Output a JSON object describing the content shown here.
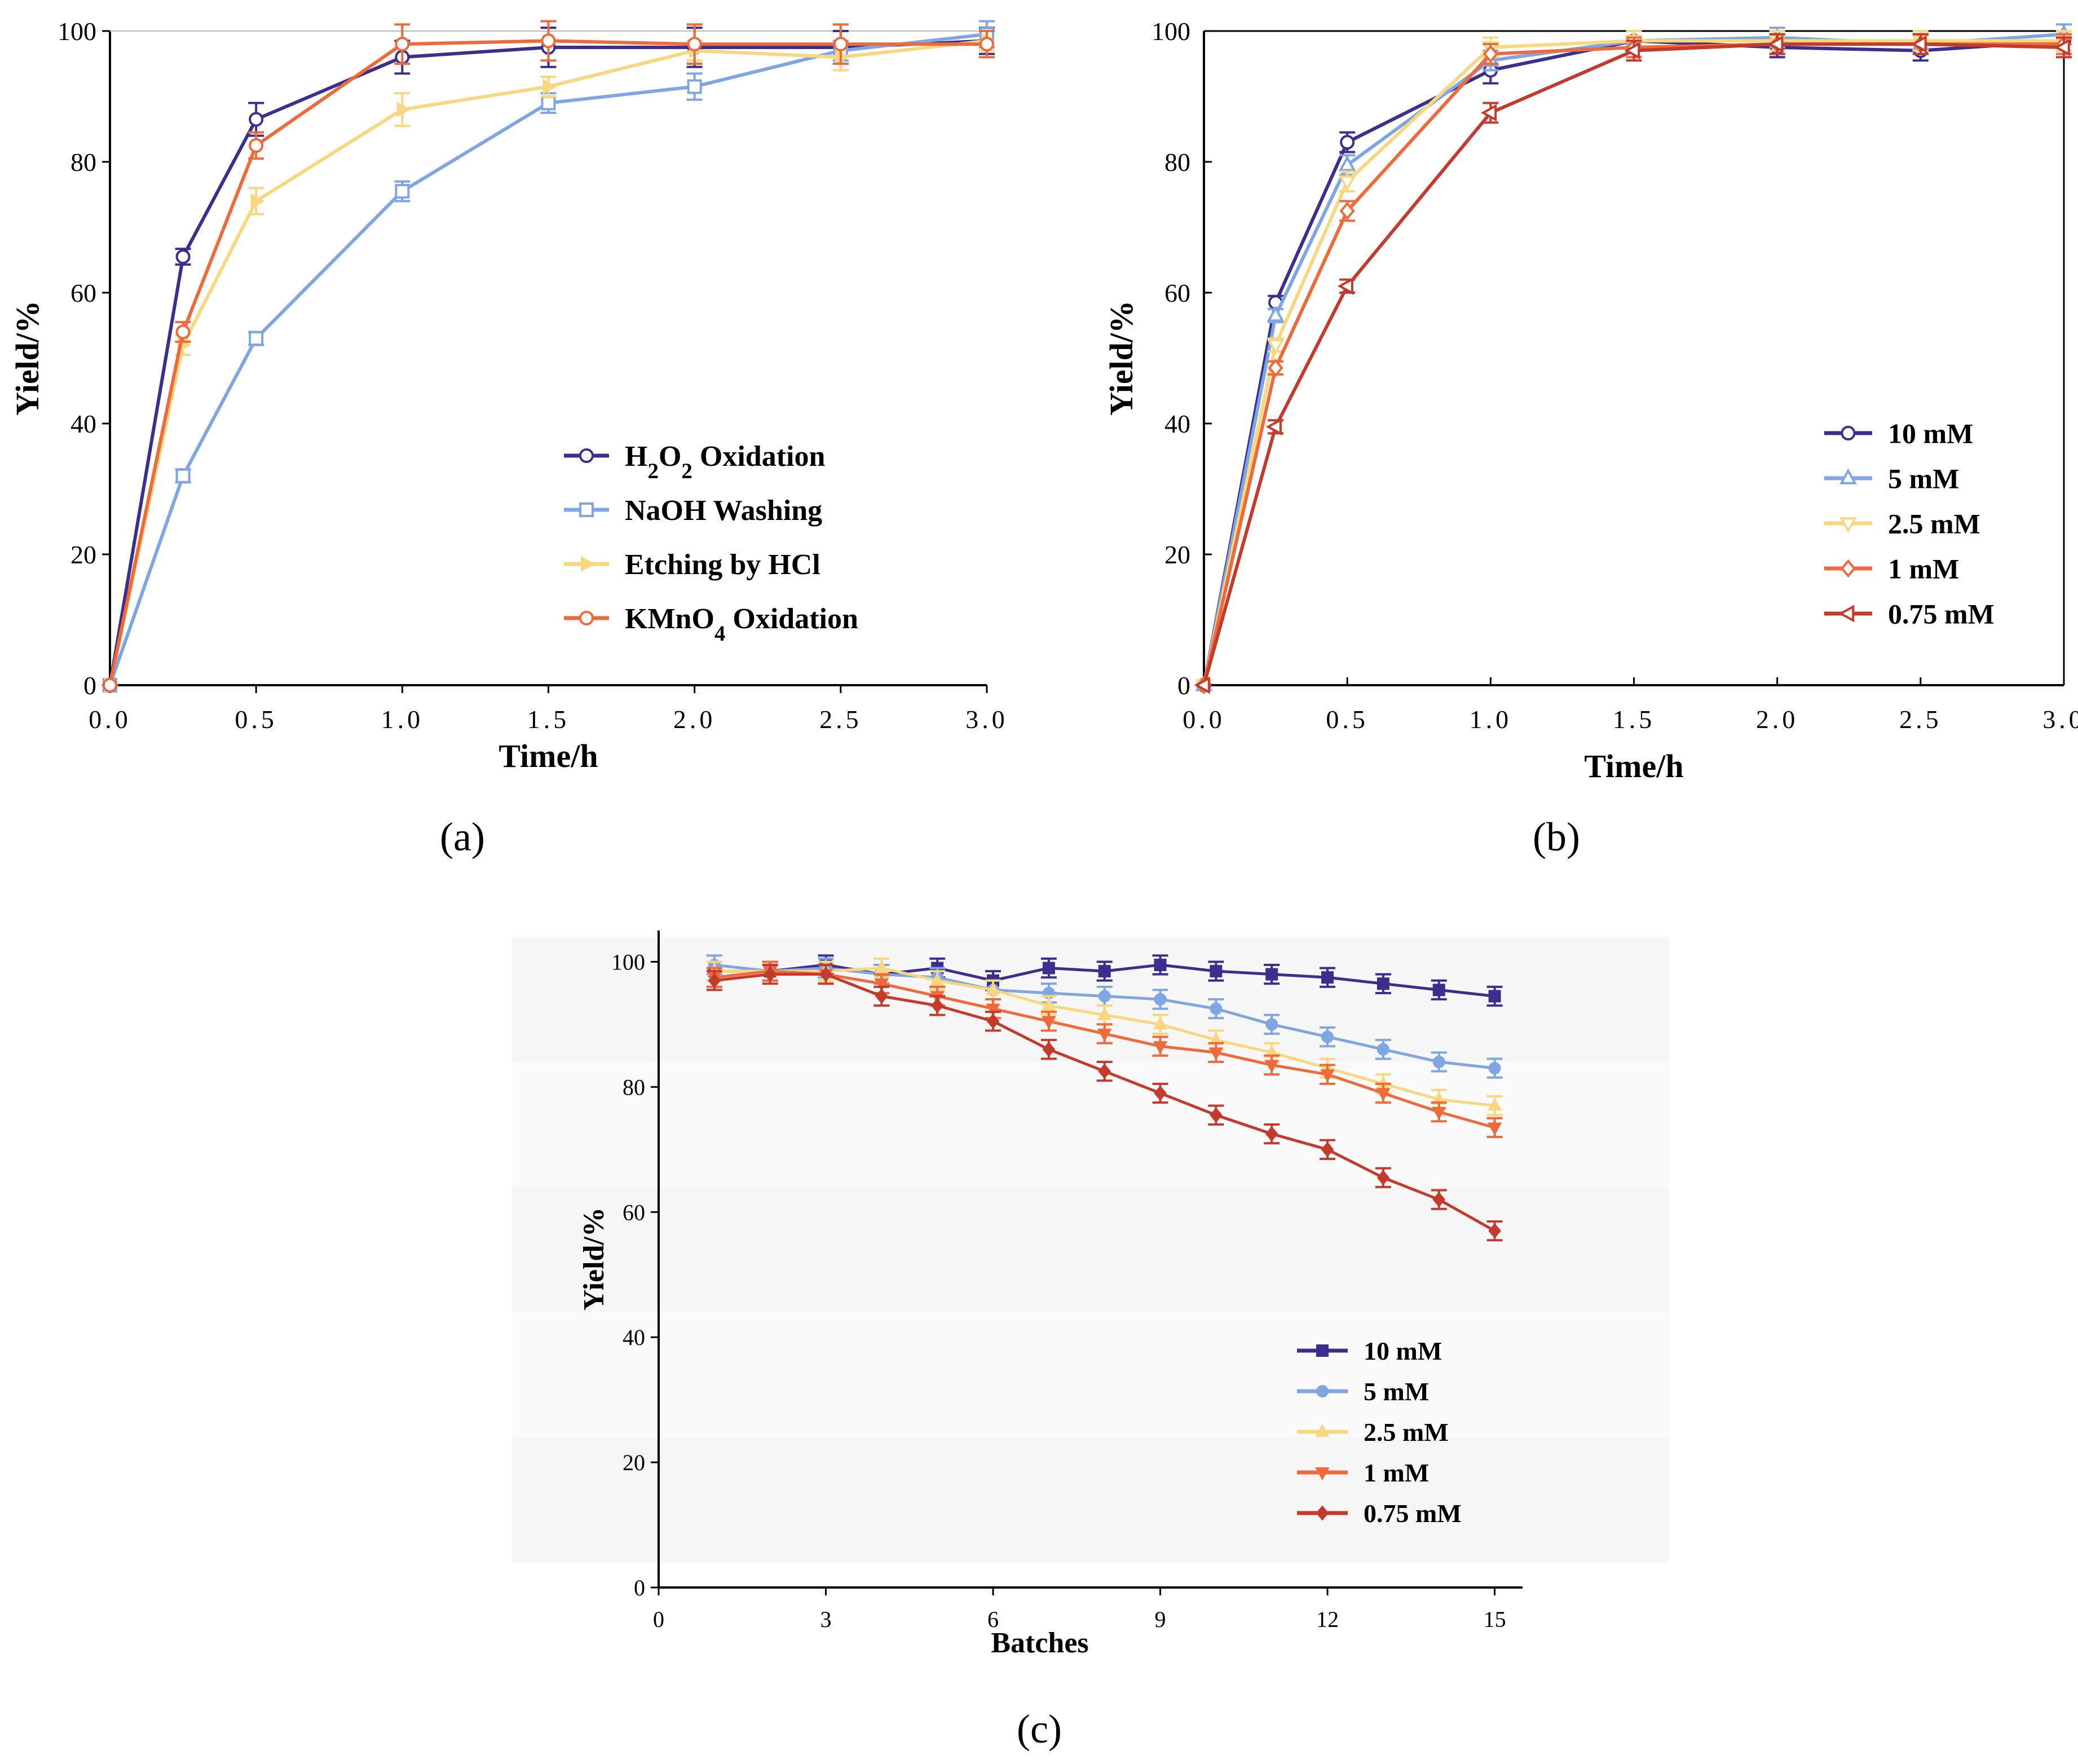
{
  "figure": {
    "panel_captions": [
      "(a)",
      "(b)",
      "(c)"
    ]
  },
  "chart_data": [
    {
      "panel": "(a)",
      "type": "line",
      "xlabel": "Time/h",
      "ylabel": "Yield/%",
      "xlim": [
        0,
        3
      ],
      "ylim": [
        0,
        100
      ],
      "xticks": [
        "0.0",
        "0.5",
        "1.0",
        "1.5",
        "2.0",
        "2.5",
        "3.0"
      ],
      "yticks": [
        "0",
        "20",
        "40",
        "60",
        "80",
        "100"
      ],
      "legend_position": "bottom-right",
      "x": [
        0,
        0.25,
        0.5,
        1.0,
        1.5,
        2.0,
        2.5,
        3.0
      ],
      "series": [
        {
          "name": "H2O2 Oxidation",
          "label_parts": [
            [
              "H",
              ""
            ],
            [
              "2",
              "sub"
            ],
            [
              "O",
              ""
            ],
            [
              "2",
              "sub"
            ],
            [
              " Oxidation",
              ""
            ]
          ],
          "color": "#3b2f8e",
          "marker": "circle-open",
          "values": [
            0,
            65.5,
            86.5,
            96,
            97.5,
            97.5,
            97.5,
            98.5
          ],
          "errors": [
            0,
            1.2,
            2.5,
            2.5,
            3,
            3,
            2.5,
            2
          ]
        },
        {
          "name": "NaOH Washing",
          "label_parts": [
            [
              "NaOH Washing",
              ""
            ]
          ],
          "color": "#7fa6e3",
          "marker": "square-open",
          "values": [
            0,
            32,
            53,
            75.5,
            89,
            91.5,
            97,
            99.5
          ],
          "errors": [
            0,
            1,
            1,
            1.5,
            1.5,
            2,
            1.5,
            2
          ]
        },
        {
          "name": "Etching by HCl",
          "label_parts": [
            [
              "Etching by HCl",
              ""
            ]
          ],
          "color": "#f9d77e",
          "marker": "tri-right",
          "values": [
            0,
            52,
            74,
            88,
            91.5,
            97,
            96,
            98.5
          ],
          "errors": [
            0,
            1.5,
            2,
            2.5,
            1.5,
            1.5,
            2,
            1.5
          ]
        },
        {
          "name": "KMnO4 Oxidation",
          "label_parts": [
            [
              "KMnO",
              ""
            ],
            [
              "4",
              "sub"
            ],
            [
              " Oxidation",
              ""
            ]
          ],
          "color": "#ee6a3a",
          "marker": "circle-open",
          "values": [
            0,
            54,
            82.5,
            98,
            98.5,
            98,
            98,
            98
          ],
          "errors": [
            0,
            1.5,
            2,
            3,
            3,
            3,
            3,
            2
          ]
        }
      ]
    },
    {
      "panel": "(b)",
      "type": "line",
      "xlabel": "Time/h",
      "ylabel": "Yield/%",
      "xlim": [
        0,
        3
      ],
      "ylim": [
        0,
        100
      ],
      "xticks": [
        "0.0",
        "0.5",
        "1.0",
        "1.5",
        "2.0",
        "2.5",
        "3.0"
      ],
      "yticks": [
        "0",
        "20",
        "40",
        "60",
        "80",
        "100"
      ],
      "legend_position": "bottom-right",
      "x": [
        0,
        0.25,
        0.5,
        1.0,
        1.5,
        2.0,
        2.5,
        3.0
      ],
      "series": [
        {
          "name": "10 mM",
          "label_parts": [
            [
              "10 mM",
              ""
            ]
          ],
          "color": "#3b2f8e",
          "marker": "circle-open",
          "values": [
            0,
            58.5,
            83,
            94,
            98.5,
            97.5,
            97,
            98.5
          ],
          "errors": [
            0,
            1,
            1.5,
            2,
            1.5,
            1.5,
            1.5,
            1.5
          ]
        },
        {
          "name": "5 mM",
          "label_parts": [
            [
              "5 mM",
              ""
            ]
          ],
          "color": "#7fa6e3",
          "marker": "tri-up-open",
          "values": [
            0,
            56.5,
            79.5,
            95.5,
            98.5,
            99,
            98,
            99.5
          ],
          "errors": [
            0,
            1,
            1.5,
            1.5,
            1.5,
            1.5,
            1.5,
            1.5
          ]
        },
        {
          "name": "2.5 mM",
          "label_parts": [
            [
              "2.5 mM",
              ""
            ]
          ],
          "color": "#f9d77e",
          "marker": "tri-down-open",
          "values": [
            0,
            52,
            77,
            97.5,
            98.5,
            98.5,
            98.5,
            98.5
          ],
          "errors": [
            0,
            1,
            1.5,
            1.5,
            1.5,
            1.5,
            1.5,
            1.5
          ]
        },
        {
          "name": "1 mM",
          "label_parts": [
            [
              "1 mM",
              ""
            ]
          ],
          "color": "#ee6a3a",
          "marker": "diamond-open",
          "values": [
            0,
            48.5,
            72.5,
            96.5,
            97.5,
            98,
            98,
            98
          ],
          "errors": [
            0,
            1,
            1.5,
            1.5,
            1.5,
            1.5,
            1.5,
            1.5
          ]
        },
        {
          "name": "0.75 mM",
          "label_parts": [
            [
              "0.75 mM",
              ""
            ]
          ],
          "color": "#c43a2c",
          "marker": "tri-left-open",
          "values": [
            0,
            39.5,
            61,
            87.5,
            97,
            98,
            98,
            97.5
          ],
          "errors": [
            0,
            1,
            1,
            1.5,
            1.5,
            1.5,
            1.5,
            1.5
          ]
        }
      ]
    },
    {
      "panel": "(c)",
      "type": "line",
      "xlabel": "Batches",
      "ylabel": "Yield/%",
      "xlim": [
        0,
        15.5
      ],
      "ylim": [
        0,
        105
      ],
      "xticks": [
        "0",
        "3",
        "6",
        "9",
        "12",
        "15"
      ],
      "yticks": [
        "0",
        "20",
        "40",
        "60",
        "80",
        "100"
      ],
      "legend_position": "bottom-right",
      "x": [
        1,
        2,
        3,
        4,
        5,
        6,
        7,
        8,
        9,
        10,
        11,
        12,
        13,
        14,
        15
      ],
      "series": [
        {
          "name": "10 mM",
          "label_parts": [
            [
              "10 mM",
              ""
            ]
          ],
          "color": "#3b2f8e",
          "marker": "square",
          "values": [
            98.5,
            98.5,
            99.5,
            98,
            99,
            97,
            99,
            98.5,
            99.5,
            98.5,
            98,
            97.5,
            96.5,
            95.5,
            94.5
          ],
          "errors": [
            1.5,
            1.5,
            1.5,
            1.5,
            1.5,
            1.5,
            1.5,
            1.5,
            1.5,
            1.5,
            1.5,
            1.5,
            1.5,
            1.5,
            1.5
          ]
        },
        {
          "name": "5 mM",
          "label_parts": [
            [
              "5 mM",
              ""
            ]
          ],
          "color": "#7fa6e3",
          "marker": "circle",
          "values": [
            99.5,
            98.5,
            99,
            98,
            97.5,
            95.5,
            95,
            94.5,
            94,
            92.5,
            90,
            88,
            86,
            84,
            83
          ],
          "errors": [
            1.5,
            1.5,
            1.5,
            1.5,
            1.5,
            1.5,
            1.5,
            1.5,
            1.5,
            1.5,
            1.5,
            1.5,
            1.5,
            1.5,
            1.5
          ]
        },
        {
          "name": "2.5 mM",
          "label_parts": [
            [
              "2.5 mM",
              ""
            ]
          ],
          "color": "#f9d77e",
          "marker": "tri-up",
          "values": [
            98.5,
            98.5,
            98.5,
            99,
            97,
            95.5,
            93,
            91.5,
            90,
            87.5,
            85.5,
            83,
            80.5,
            78,
            77
          ],
          "errors": [
            1.5,
            1.5,
            1.5,
            1.5,
            1.5,
            1.5,
            1.5,
            1.5,
            1.5,
            1.5,
            1.5,
            1.5,
            1.5,
            1.5,
            1.5
          ]
        },
        {
          "name": "1 mM",
          "label_parts": [
            [
              "1 mM",
              ""
            ]
          ],
          "color": "#ee6a3a",
          "marker": "tri-down",
          "values": [
            97.5,
            98.5,
            98,
            96.5,
            94.5,
            92.5,
            90.5,
            88.5,
            86.5,
            85.5,
            83.5,
            82,
            79,
            76,
            73.5
          ],
          "errors": [
            1.5,
            1.5,
            1.5,
            1.5,
            1.5,
            1.5,
            1.5,
            1.5,
            1.5,
            1.5,
            1.5,
            1.5,
            1.5,
            1.5,
            1.5
          ]
        },
        {
          "name": "0.75 mM",
          "label_parts": [
            [
              "0.75 mM",
              ""
            ]
          ],
          "color": "#c43a2c",
          "marker": "diamond",
          "values": [
            97,
            98,
            98,
            94.5,
            93,
            90.5,
            86,
            82.5,
            79,
            75.5,
            72.5,
            70,
            65.5,
            62,
            57
          ],
          "errors": [
            1.5,
            1.5,
            1.5,
            1.5,
            1.5,
            1.5,
            1.5,
            1.5,
            1.5,
            1.5,
            1.5,
            1.5,
            1.5,
            1.5,
            1.5
          ]
        }
      ]
    }
  ]
}
